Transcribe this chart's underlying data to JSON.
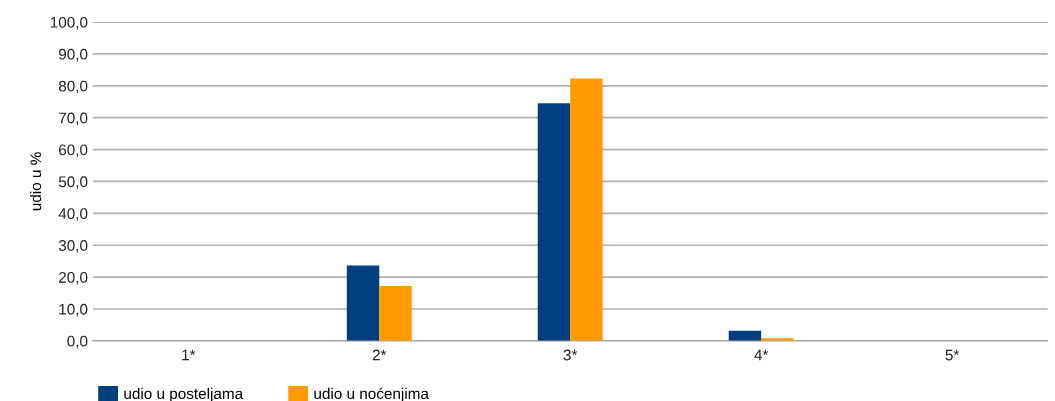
{
  "chart_data": {
    "type": "bar",
    "ylabel": "udio u %",
    "categories": [
      "1*",
      "2*",
      "3*",
      "4*",
      "5*"
    ],
    "series": [
      {
        "name": "udio u posteljama",
        "color": "#003f7f",
        "values": [
          0,
          23.6,
          74.5,
          3.2,
          0
        ]
      },
      {
        "name": "udio u noćenjima",
        "color": "#ff9a00",
        "values": [
          0,
          17.2,
          82.3,
          0.8,
          0
        ]
      }
    ],
    "ylim": [
      0,
      100
    ],
    "yticks": [
      {
        "value": 0,
        "label": "0,0"
      },
      {
        "value": 10,
        "label": "10,0"
      },
      {
        "value": 20,
        "label": "20,0"
      },
      {
        "value": 30,
        "label": "30,0"
      },
      {
        "value": 40,
        "label": "40,0"
      },
      {
        "value": 50,
        "label": "50,0"
      },
      {
        "value": 60,
        "label": "60,0"
      },
      {
        "value": 70,
        "label": "70,0"
      },
      {
        "value": 80,
        "label": "80,0"
      },
      {
        "value": 90,
        "label": "90,0"
      },
      {
        "value": 100,
        "label": "100,0"
      }
    ],
    "grid": "y",
    "legend": "bottom left"
  }
}
